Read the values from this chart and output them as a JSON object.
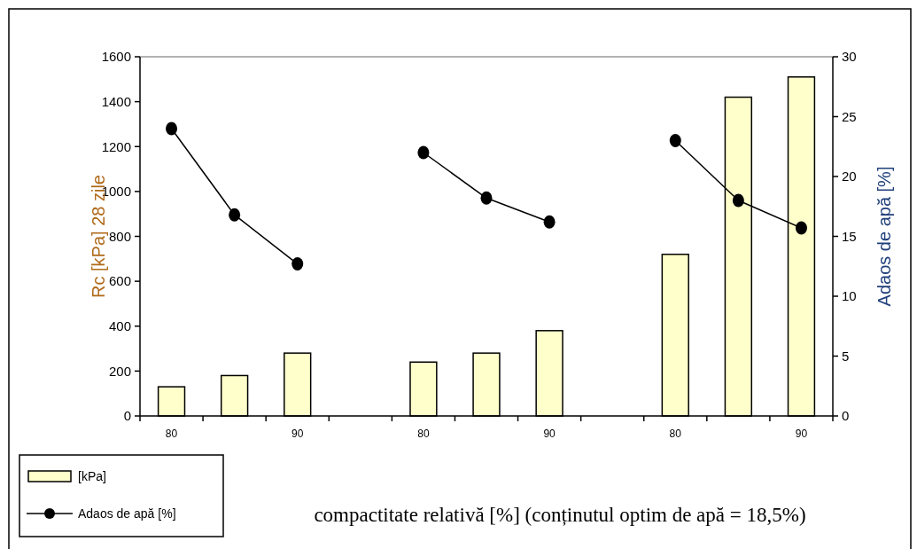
{
  "chart_data": {
    "type": "bar",
    "xlabel": "compactitate relativă [%] (conținutul optim de apă = 18,5%)",
    "ylabel": "Rc [kPa] 28 zile",
    "y2label": "Adaos de apă [%]",
    "categories": [
      "80",
      null,
      "90",
      null,
      "80",
      null,
      "90",
      null,
      "80",
      null,
      "90"
    ],
    "series": [
      {
        "name": "[kPa]",
        "color": "#ffffcc",
        "values": [
          130,
          180,
          280,
          null,
          240,
          280,
          380,
          null,
          720,
          1420,
          1510
        ]
      },
      {
        "name": "Adaos de apă [%]",
        "type": "line",
        "axis": "y2",
        "color": "#000000",
        "marker": "circle",
        "values": [
          24.0,
          16.8,
          12.7,
          null,
          22.0,
          18.2,
          16.2,
          null,
          23.0,
          18.0,
          15.7
        ]
      }
    ],
    "ylim": [
      0,
      1600
    ],
    "yticks": [
      0,
      200,
      400,
      600,
      800,
      1000,
      1200,
      1400,
      1600
    ],
    "y2lim": [
      0,
      30
    ],
    "y2ticks": [
      0,
      5,
      10,
      15,
      20,
      25,
      30
    ],
    "legend": "bottom left",
    "grid": false
  }
}
